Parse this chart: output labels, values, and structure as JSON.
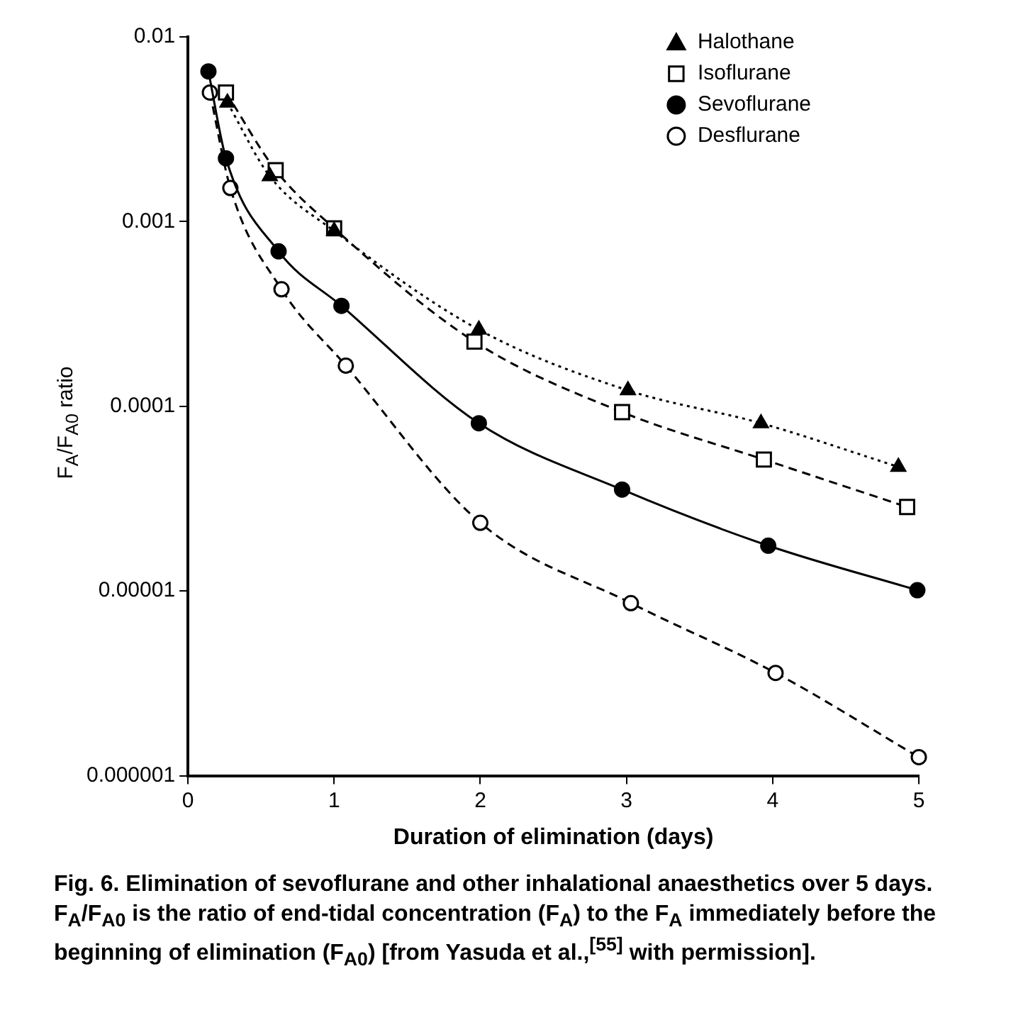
{
  "chart_data": {
    "type": "line",
    "xlabel": "Duration of elimination (days)",
    "ylabel": "F$_{A}$/F$_{A0}$ ratio",
    "annotations": [
      "Fig. 6. Elimination of sevoflurane and other inhalational anaesthetics over 5 days. F$_{A}$/F$_{A0}$ is the ratio of end-tidal concentration (F$_{A}$) to the F$_{A}$ immediately before the beginning of elimination (F$_{A0}$) [from Yasuda et al.,$^{[55]}$ with permission]."
    ],
    "series": [
      {
        "name": "Halothane",
        "color": "#000000",
        "marker": "triangle",
        "line_style": "dotted",
        "x": [
          0.27,
          0.56,
          1.0,
          1.99,
          3.01,
          3.92,
          4.86
        ],
        "values": [
          0.0044,
          0.00176,
          0.00089,
          0.00026,
          0.000122,
          8.1e-05,
          4.7e-05
        ]
      },
      {
        "name": "Isoflurane",
        "color": "#000000",
        "marker": "square-open",
        "line_style": "dashed",
        "x": [
          0.26,
          0.6,
          1.0,
          1.96,
          2.97,
          3.94,
          4.92
        ],
        "values": [
          0.005,
          0.0019,
          0.00092,
          0.000224,
          9.3e-05,
          5.15e-05,
          2.85e-05
        ]
      },
      {
        "name": "Sevoflurane",
        "color": "#000000",
        "marker": "circle",
        "line_style": "solid",
        "x": [
          0.14,
          0.26,
          0.62,
          1.05,
          1.99,
          2.97,
          3.97,
          4.99
        ],
        "values": [
          0.0065,
          0.0022,
          0.00069,
          0.00035,
          8.1e-05,
          3.54e-05,
          1.76e-05,
          1.01e-05
        ]
      },
      {
        "name": "Desflurane",
        "color": "#000000",
        "marker": "circle-open",
        "line_style": "dashed",
        "x": [
          0.15,
          0.29,
          0.64,
          1.08,
          2.0,
          3.03,
          4.02,
          5.0
        ],
        "values": [
          0.005,
          0.00152,
          0.00043,
          0.000166,
          2.34e-05,
          8.6e-06,
          3.6e-06,
          1.26e-06
        ]
      }
    ],
    "xlim": [
      0,
      5
    ],
    "xticks": [
      0,
      1,
      2,
      3,
      4,
      5
    ],
    "ylim": [
      1e-06,
      0.01
    ],
    "yticks": [
      0.01,
      0.001,
      0.0001,
      {
        "value": 1e-05,
        "label": "0.00001"
      },
      {
        "value": 1e-06,
        "label": "0.000001"
      }
    ],
    "log": "y",
    "grid": false,
    "legend": "top right"
  }
}
